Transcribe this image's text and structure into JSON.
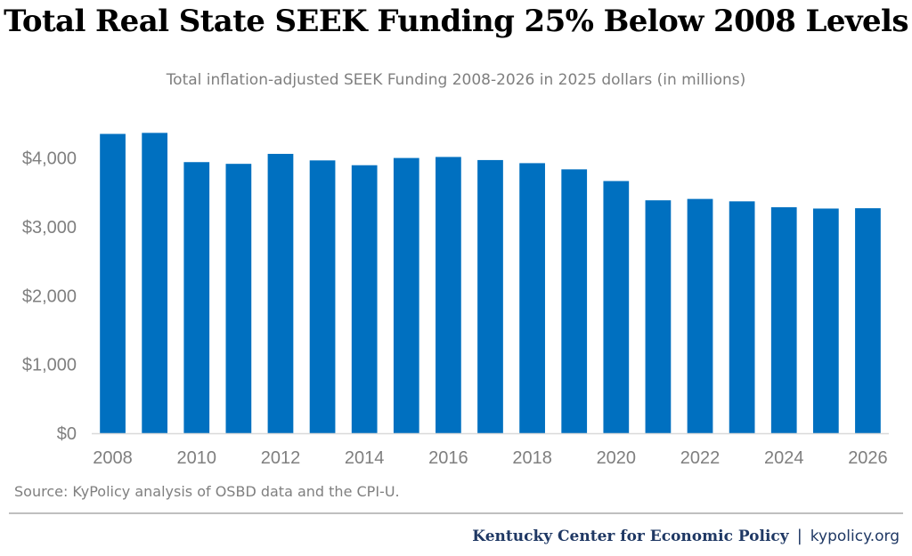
{
  "title": "Total Real State SEEK Funding 25% Below 2008 Levels",
  "subtitle": "Total inflation-adjusted SEEK Funding 2008-2026 in 2025 dollars (in millions)",
  "source": "Source: KyPolicy analysis of OSBD data and the CPI-U.",
  "footer": {
    "brand": "Kentucky Center for Economic Policy",
    "separator": "|",
    "site": "kypolicy.org"
  },
  "chart_data": {
    "type": "bar",
    "title": "Total Real State SEEK Funding 25% Below 2008 Levels",
    "subtitle": "Total inflation-adjusted SEEK Funding 2008-2026 in 2025 dollars (in millions)",
    "xlabel": "",
    "ylabel": "",
    "categories": [
      "2008",
      "2009",
      "2010",
      "2011",
      "2012",
      "2013",
      "2014",
      "2015",
      "2016",
      "2017",
      "2018",
      "2019",
      "2020",
      "2021",
      "2022",
      "2023",
      "2024",
      "2025",
      "2026"
    ],
    "x_tick_labels": [
      "2008",
      "2010",
      "2012",
      "2014",
      "2016",
      "2018",
      "2020",
      "2022",
      "2024",
      "2026"
    ],
    "values": [
      4350,
      4365,
      3940,
      3915,
      4060,
      3965,
      3895,
      4000,
      4015,
      3970,
      3925,
      3835,
      3665,
      3385,
      3405,
      3370,
      3285,
      3265,
      3270
    ],
    "ylim": [
      0,
      4500
    ],
    "y_ticks": [
      0,
      1000,
      2000,
      3000,
      4000
    ],
    "y_tick_labels": [
      "$0",
      "$1,000",
      "$2,000",
      "$3,000",
      "$4,000"
    ],
    "grid": false,
    "legend": "none",
    "bar_color": "#0070c0",
    "axis_color": "#d9d9d9"
  }
}
